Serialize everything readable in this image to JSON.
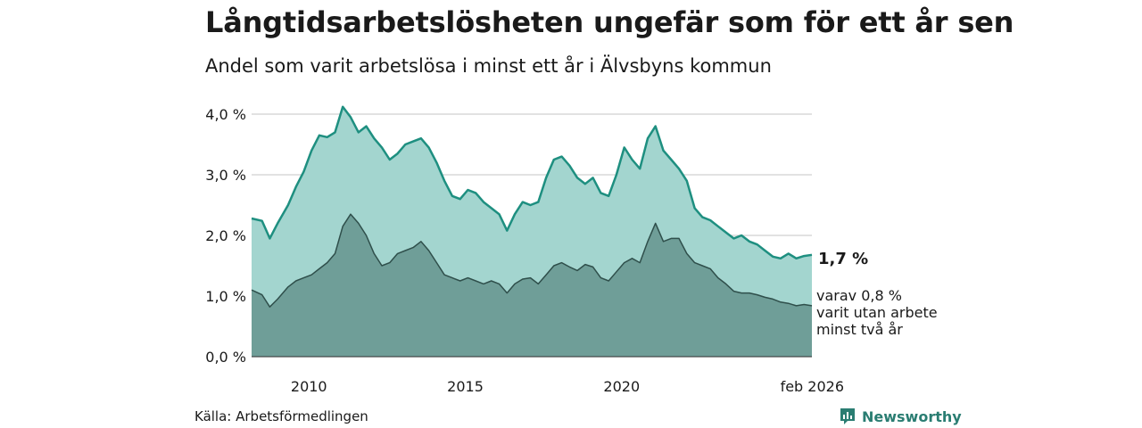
{
  "header": {
    "title": "Långtidsarbetslösheten ungefär som för ett år sen",
    "subtitle": "Andel som varit arbetslösa i minst ett år i Älvsbyns kommun"
  },
  "footer": {
    "source": "Källa: Arbetsförmedlingen",
    "brand": "Newsworthy"
  },
  "colors": {
    "upper_fill": "#a3d5cf",
    "upper_line": "#1e8f80",
    "lower_fill": "#6f9e98",
    "lower_line": "#2f4f4b",
    "grid": "#d9d9d9"
  },
  "chart_data": {
    "type": "area",
    "title": "Långtidsarbetslösheten ungefär som för ett år sen",
    "subtitle": "Andel som varit arbetslösa i minst ett år i Älvsbyns kommun",
    "ylim": [
      0,
      4.0
    ],
    "y_ticks": [
      {
        "value": 0,
        "label": "0,0 %"
      },
      {
        "value": 1,
        "label": "1,0 %"
      },
      {
        "value": 2,
        "label": "2,0 %"
      },
      {
        "value": 3,
        "label": "3,0 %"
      },
      {
        "value": 4,
        "label": "4,0 %"
      }
    ],
    "x_ticks": [
      {
        "value": "2010-01",
        "label": "2010"
      },
      {
        "value": "2015-01",
        "label": "2015"
      },
      {
        "value": "2020-01",
        "label": "2020"
      },
      {
        "value": "2026-02",
        "label": "feb 2026"
      }
    ],
    "grid": true,
    "series": [
      {
        "key": "min1",
        "values": [
          [
            "2008-03",
            2.28
          ],
          [
            "2008-07",
            2.24
          ],
          [
            "2008-10",
            1.95
          ],
          [
            "2009-01",
            2.2
          ],
          [
            "2009-05",
            2.5
          ],
          [
            "2009-08",
            2.8
          ],
          [
            "2009-11",
            3.05
          ],
          [
            "2010-02",
            3.4
          ],
          [
            "2010-05",
            3.65
          ],
          [
            "2010-08",
            3.62
          ],
          [
            "2010-11",
            3.7
          ],
          [
            "2011-02",
            4.12
          ],
          [
            "2011-05",
            3.95
          ],
          [
            "2011-08",
            3.7
          ],
          [
            "2011-11",
            3.8
          ],
          [
            "2012-02",
            3.6
          ],
          [
            "2012-05",
            3.45
          ],
          [
            "2012-08",
            3.25
          ],
          [
            "2012-11",
            3.35
          ],
          [
            "2013-02",
            3.5
          ],
          [
            "2013-05",
            3.55
          ],
          [
            "2013-08",
            3.6
          ],
          [
            "2013-11",
            3.45
          ],
          [
            "2014-02",
            3.2
          ],
          [
            "2014-05",
            2.9
          ],
          [
            "2014-08",
            2.65
          ],
          [
            "2014-11",
            2.6
          ],
          [
            "2015-02",
            2.75
          ],
          [
            "2015-05",
            2.7
          ],
          [
            "2015-08",
            2.55
          ],
          [
            "2015-11",
            2.45
          ],
          [
            "2016-02",
            2.35
          ],
          [
            "2016-05",
            2.08
          ],
          [
            "2016-08",
            2.35
          ],
          [
            "2016-11",
            2.55
          ],
          [
            "2017-02",
            2.5
          ],
          [
            "2017-05",
            2.55
          ],
          [
            "2017-08",
            2.95
          ],
          [
            "2017-11",
            3.25
          ],
          [
            "2018-02",
            3.3
          ],
          [
            "2018-05",
            3.15
          ],
          [
            "2018-08",
            2.95
          ],
          [
            "2018-11",
            2.85
          ],
          [
            "2019-02",
            2.95
          ],
          [
            "2019-05",
            2.7
          ],
          [
            "2019-08",
            2.65
          ],
          [
            "2019-11",
            3.0
          ],
          [
            "2020-02",
            3.45
          ],
          [
            "2020-05",
            3.25
          ],
          [
            "2020-08",
            3.1
          ],
          [
            "2020-11",
            3.6
          ],
          [
            "2021-02",
            3.8
          ],
          [
            "2021-05",
            3.4
          ],
          [
            "2021-08",
            3.25
          ],
          [
            "2021-11",
            3.1
          ],
          [
            "2022-02",
            2.9
          ],
          [
            "2022-05",
            2.45
          ],
          [
            "2022-08",
            2.3
          ],
          [
            "2022-11",
            2.25
          ],
          [
            "2023-02",
            2.15
          ],
          [
            "2023-05",
            2.05
          ],
          [
            "2023-08",
            1.95
          ],
          [
            "2023-11",
            2.0
          ],
          [
            "2024-02",
            1.9
          ],
          [
            "2024-05",
            1.85
          ],
          [
            "2024-08",
            1.75
          ],
          [
            "2024-11",
            1.65
          ],
          [
            "2025-02",
            1.62
          ],
          [
            "2025-05",
            1.7
          ],
          [
            "2025-08",
            1.62
          ],
          [
            "2025-11",
            1.66
          ],
          [
            "2026-02",
            1.68
          ]
        ]
      },
      {
        "key": "min2",
        "values": [
          [
            "2008-03",
            1.1
          ],
          [
            "2008-07",
            1.02
          ],
          [
            "2008-10",
            0.82
          ],
          [
            "2009-01",
            0.95
          ],
          [
            "2009-05",
            1.15
          ],
          [
            "2009-08",
            1.25
          ],
          [
            "2009-11",
            1.3
          ],
          [
            "2010-02",
            1.35
          ],
          [
            "2010-05",
            1.45
          ],
          [
            "2010-08",
            1.55
          ],
          [
            "2010-11",
            1.7
          ],
          [
            "2011-02",
            2.15
          ],
          [
            "2011-05",
            2.35
          ],
          [
            "2011-08",
            2.2
          ],
          [
            "2011-11",
            2.0
          ],
          [
            "2012-02",
            1.7
          ],
          [
            "2012-05",
            1.5
          ],
          [
            "2012-08",
            1.55
          ],
          [
            "2012-11",
            1.7
          ],
          [
            "2013-02",
            1.75
          ],
          [
            "2013-05",
            1.8
          ],
          [
            "2013-08",
            1.9
          ],
          [
            "2013-11",
            1.75
          ],
          [
            "2014-02",
            1.55
          ],
          [
            "2014-05",
            1.35
          ],
          [
            "2014-08",
            1.3
          ],
          [
            "2014-11",
            1.25
          ],
          [
            "2015-02",
            1.3
          ],
          [
            "2015-05",
            1.25
          ],
          [
            "2015-08",
            1.2
          ],
          [
            "2015-11",
            1.25
          ],
          [
            "2016-02",
            1.2
          ],
          [
            "2016-05",
            1.05
          ],
          [
            "2016-08",
            1.2
          ],
          [
            "2016-11",
            1.28
          ],
          [
            "2017-02",
            1.3
          ],
          [
            "2017-05",
            1.2
          ],
          [
            "2017-08",
            1.35
          ],
          [
            "2017-11",
            1.5
          ],
          [
            "2018-02",
            1.55
          ],
          [
            "2018-05",
            1.48
          ],
          [
            "2018-08",
            1.42
          ],
          [
            "2018-11",
            1.52
          ],
          [
            "2019-02",
            1.48
          ],
          [
            "2019-05",
            1.3
          ],
          [
            "2019-08",
            1.25
          ],
          [
            "2019-11",
            1.4
          ],
          [
            "2020-02",
            1.55
          ],
          [
            "2020-05",
            1.62
          ],
          [
            "2020-08",
            1.55
          ],
          [
            "2020-11",
            1.9
          ],
          [
            "2021-02",
            2.2
          ],
          [
            "2021-05",
            1.9
          ],
          [
            "2021-08",
            1.95
          ],
          [
            "2021-11",
            1.95
          ],
          [
            "2022-02",
            1.7
          ],
          [
            "2022-05",
            1.55
          ],
          [
            "2022-08",
            1.5
          ],
          [
            "2022-11",
            1.45
          ],
          [
            "2023-02",
            1.3
          ],
          [
            "2023-05",
            1.2
          ],
          [
            "2023-08",
            1.08
          ],
          [
            "2023-11",
            1.05
          ],
          [
            "2024-02",
            1.05
          ],
          [
            "2024-05",
            1.02
          ],
          [
            "2024-08",
            0.98
          ],
          [
            "2024-11",
            0.95
          ],
          [
            "2025-02",
            0.9
          ],
          [
            "2025-05",
            0.88
          ],
          [
            "2025-08",
            0.84
          ],
          [
            "2025-11",
            0.86
          ],
          [
            "2026-02",
            0.84
          ]
        ]
      }
    ],
    "annotations": {
      "last_value": "1,7 %",
      "sub_line1": "varav 0,8 %",
      "sub_line2": "varit utan arbete",
      "sub_line3": "minst två år"
    }
  }
}
